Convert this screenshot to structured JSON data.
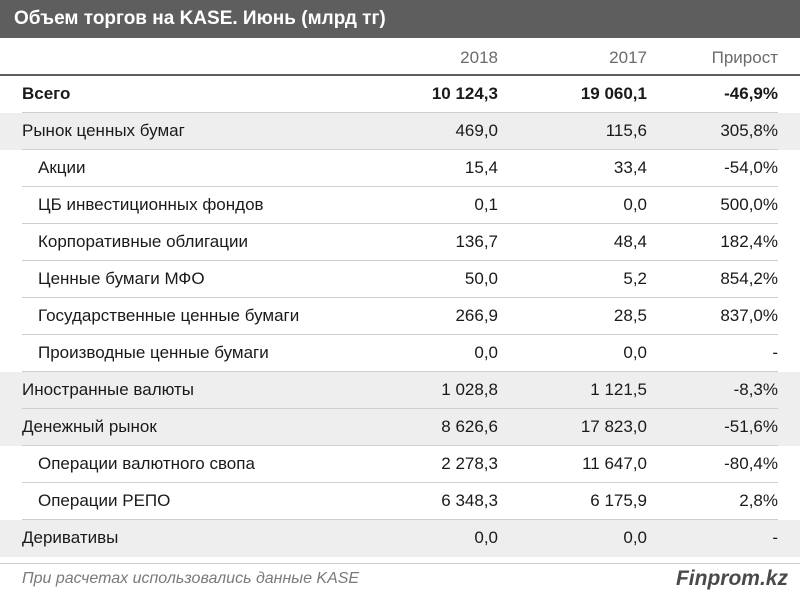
{
  "title": "Объем торгов на KASE. Июнь (млрд тг)",
  "columns": {
    "c2018": "2018",
    "c2017": "2017",
    "growth": "Прирост"
  },
  "rows": [
    {
      "label": "Всего",
      "v2018": "10 124,3",
      "v2017": "19 060,1",
      "growth": "-46,9%"
    },
    {
      "label": "Рынок ценных бумаг",
      "v2018": "469,0",
      "v2017": "115,6",
      "growth": "305,8%"
    },
    {
      "label": "Акции",
      "v2018": "15,4",
      "v2017": "33,4",
      "growth": "-54,0%"
    },
    {
      "label": "ЦБ инвестиционных фондов",
      "v2018": "0,1",
      "v2017": "0,0",
      "growth": "500,0%"
    },
    {
      "label": "Корпоративные облигации",
      "v2018": "136,7",
      "v2017": "48,4",
      "growth": "182,4%"
    },
    {
      "label": "Ценные бумаги МФО",
      "v2018": "50,0",
      "v2017": "5,2",
      "growth": "854,2%"
    },
    {
      "label": "Государственные ценные бумаги",
      "v2018": "266,9",
      "v2017": "28,5",
      "growth": "837,0%"
    },
    {
      "label": "Производные ценные бумаги",
      "v2018": "0,0",
      "v2017": "0,0",
      "growth": "-"
    },
    {
      "label": "Иностранные валюты",
      "v2018": "1 028,8",
      "v2017": "1 121,5",
      "growth": "-8,3%"
    },
    {
      "label": "Денежный рынок",
      "v2018": "8 626,6",
      "v2017": "17 823,0",
      "growth": "-51,6%"
    },
    {
      "label": "Операции валютного свопа",
      "v2018": "2 278,3",
      "v2017": "11 647,0",
      "growth": "-80,4%"
    },
    {
      "label": "Операции РЕПО",
      "v2018": "6 348,3",
      "v2017": "6 175,9",
      "growth": "2,8%"
    },
    {
      "label": "Деривативы",
      "v2018": "0,0",
      "v2017": "0,0",
      "growth": "-"
    }
  ],
  "footer": {
    "note": "При расчетах использовались данные KASE",
    "brand": "Finprom.kz"
  },
  "colors": {
    "title_bg": "#5e5e5e",
    "shaded_row": "#eeeeee",
    "separator": "#cfcfcf"
  }
}
